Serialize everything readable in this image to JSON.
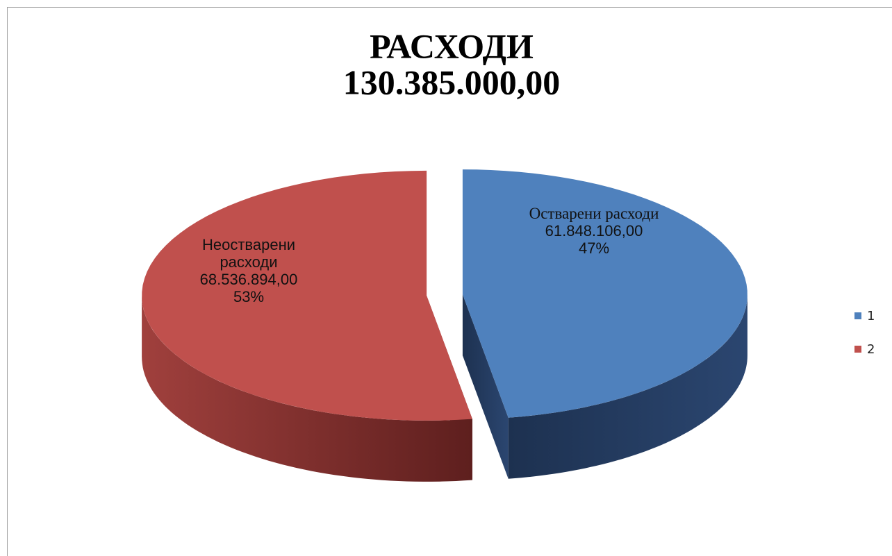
{
  "chart_data": {
    "type": "pie",
    "title": "РАСХОДИ",
    "subtitle": "130.385.000,00",
    "categories": [
      "1",
      "2"
    ],
    "label_names": [
      "Остварени расходи",
      "Неостварени расходи"
    ],
    "values": [
      61848106,
      68536894
    ],
    "value_labels": [
      "61.848.106,00",
      "68.536.894,00"
    ],
    "percents": [
      47,
      53
    ],
    "percent_labels": [
      "47%",
      "53%"
    ],
    "colors": [
      "#4f81bd",
      "#c0504d"
    ],
    "legend": "right"
  }
}
